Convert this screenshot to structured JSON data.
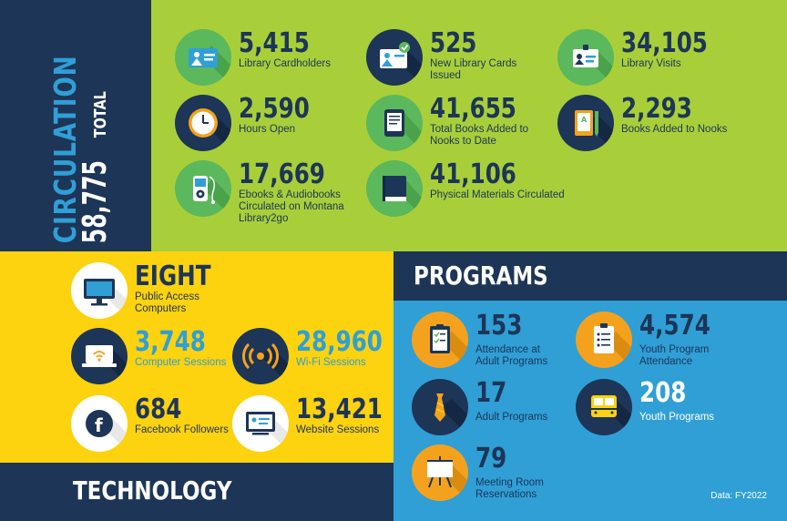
{
  "circulation": {
    "title": "CIRCULATION",
    "total": "58,775",
    "total_label": "TOTAL",
    "stats": [
      {
        "value": "5,415",
        "label": "Library Cardholders",
        "icon": "id-card-icon"
      },
      {
        "value": "525",
        "label": "New Library Cards Issued",
        "icon": "new-card-icon"
      },
      {
        "value": "34,105",
        "label": "Library Visits",
        "icon": "badge-icon"
      },
      {
        "value": "2,590",
        "label": "Hours Open",
        "icon": "clock-icon"
      },
      {
        "value": "41,655",
        "label": "Total Books Added to Nooks to Date",
        "icon": "ereader-icon"
      },
      {
        "value": "2,293",
        "label": "Books Added to Nooks",
        "icon": "tablet-book-icon"
      },
      {
        "value": "17,669",
        "label": "Ebooks & Audiobooks Circulated on Montana Library2go",
        "icon": "audio-player-icon"
      },
      {
        "value": "41,106",
        "label": "Physical Materials Circulated",
        "icon": "book-icon"
      }
    ]
  },
  "technology": {
    "title": "TECHNOLOGY",
    "stats": [
      {
        "value": "EIGHT",
        "label": "Public Access Computers",
        "icon": "monitor-icon"
      },
      {
        "value": "3,748",
        "label": "Computer Sessions",
        "icon": "laptop-wifi-icon"
      },
      {
        "value": "28,960",
        "label": "Wi-Fi Sessions",
        "icon": "wifi-signal-icon"
      },
      {
        "value": "684",
        "label": "Facebook Followers",
        "icon": "facebook-icon"
      },
      {
        "value": "13,421",
        "label": "Website Sessions",
        "icon": "website-icon"
      }
    ]
  },
  "programs": {
    "title": "PROGRAMS",
    "stats": [
      {
        "value": "153",
        "label": "Attendance at Adult Programs",
        "icon": "clipboard-icon"
      },
      {
        "value": "4,574",
        "label": "Youth Program Attendance",
        "icon": "checklist-icon"
      },
      {
        "value": "17",
        "label": "Adult Programs",
        "icon": "necktie-icon"
      },
      {
        "value": "208",
        "label": "Youth Programs",
        "icon": "school-bus-icon"
      },
      {
        "value": "79",
        "label": "Meeting Room Reservations",
        "icon": "easel-icon"
      }
    ],
    "note": "Data: FY2022"
  },
  "colors": {
    "navy": "#1d3557",
    "lime": "#a8cf3a",
    "yellow": "#fdd20e",
    "blue": "#2f9fd6",
    "green_icon": "#5cb85c",
    "orange_icon": "#f4a21d"
  }
}
